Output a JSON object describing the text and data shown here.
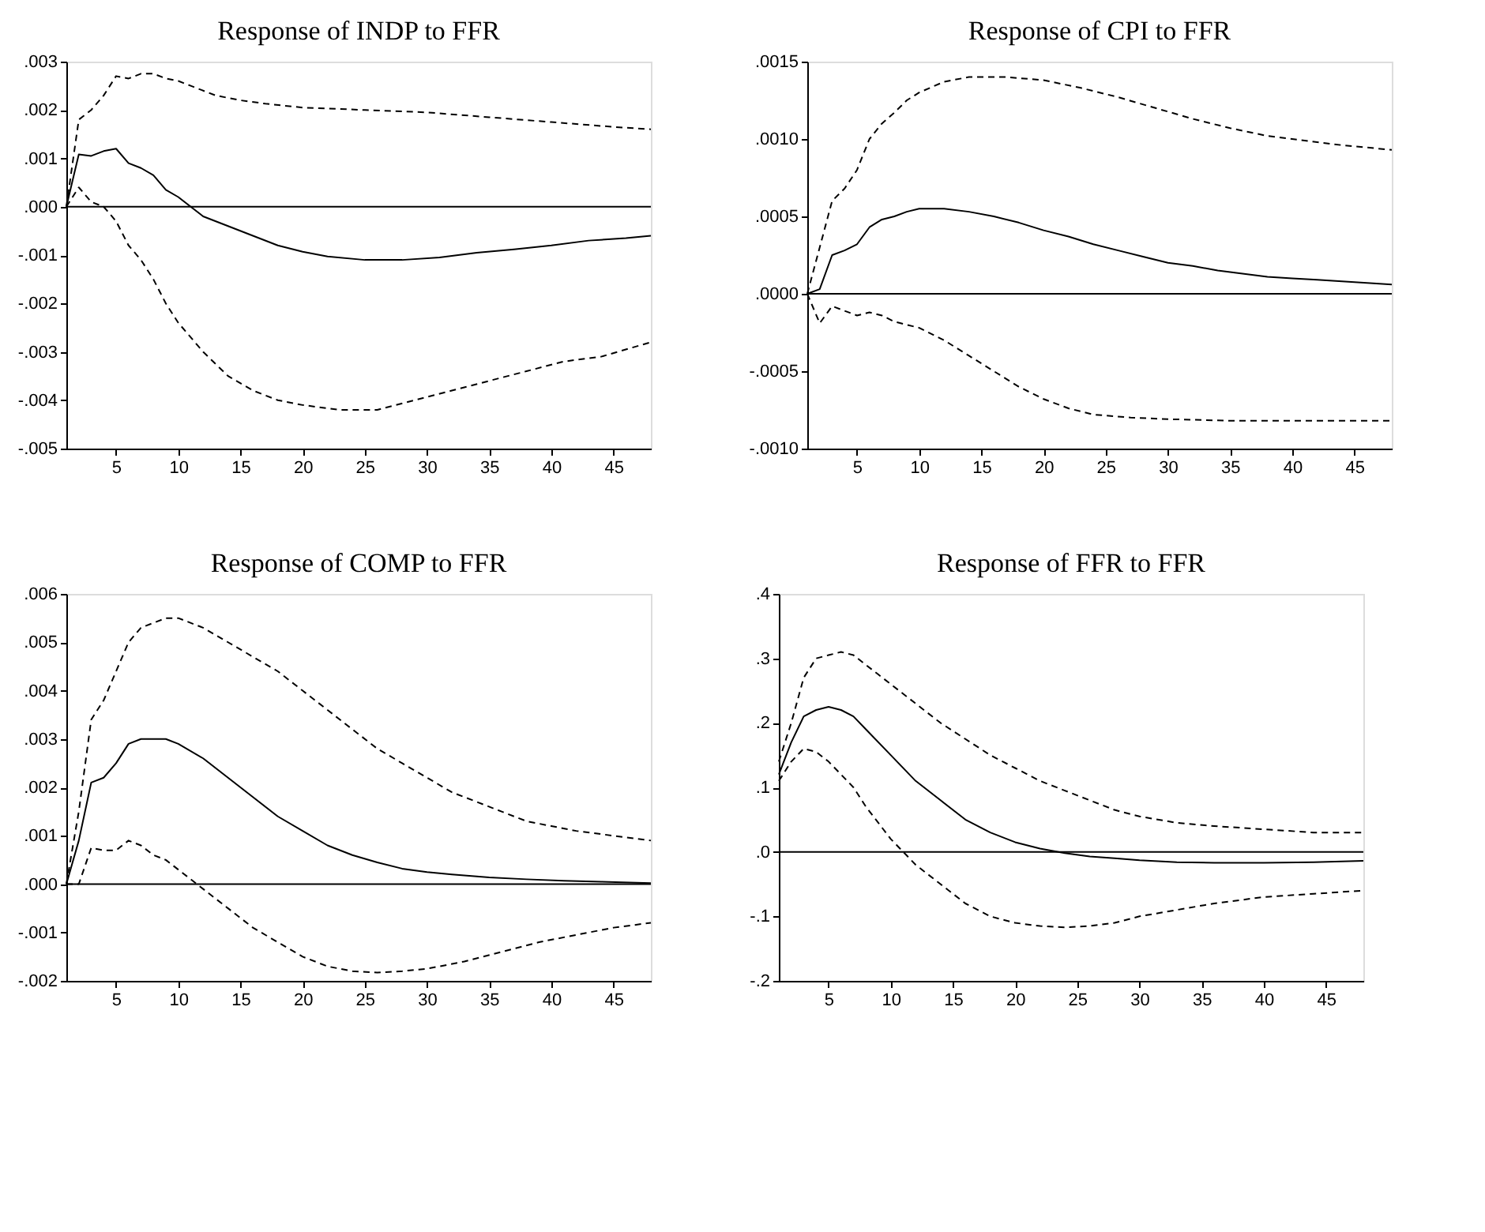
{
  "chart_data": [
    {
      "type": "line",
      "title": "Response of INDP to FFR",
      "xlim": [
        1,
        48
      ],
      "xticks": [
        5,
        10,
        15,
        20,
        25,
        30,
        35,
        40,
        45
      ],
      "ylim": [
        -0.005,
        0.003
      ],
      "yticks": [
        {
          "value": 0.003,
          "label": ".003"
        },
        {
          "value": 0.002,
          "label": ".002"
        },
        {
          "value": 0.001,
          "label": ".001"
        },
        {
          "value": 0,
          "label": ".000"
        },
        {
          "value": -0.001,
          "label": "-.001"
        },
        {
          "value": -0.002,
          "label": "-.002"
        },
        {
          "value": -0.003,
          "label": "-.003"
        },
        {
          "value": -0.004,
          "label": "-.004"
        },
        {
          "value": -0.005,
          "label": "-.005"
        }
      ],
      "grid": false,
      "ref_lines": [
        {
          "axis": "y",
          "value": 0,
          "color": "#000000",
          "line_style": "solid"
        }
      ],
      "series": [
        {
          "color": "#000000",
          "line_style": "solid",
          "x": [
            1,
            2,
            3,
            4,
            5,
            6,
            7,
            8,
            9,
            10,
            11,
            12,
            14,
            16,
            18,
            20,
            22,
            25,
            28,
            31,
            34,
            37,
            40,
            43,
            46,
            48
          ],
          "values": [
            0,
            0.00108,
            0.00105,
            0.00115,
            0.0012,
            0.0009,
            0.0008,
            0.00065,
            0.00035,
            0.0002,
            0,
            -0.0002,
            -0.0004,
            -0.0006,
            -0.0008,
            -0.00093,
            -0.00103,
            -0.0011,
            -0.0011,
            -0.00105,
            -0.00095,
            -0.00088,
            -0.0008,
            -0.0007,
            -0.00065,
            -0.0006
          ]
        },
        {
          "color": "#000000",
          "line_style": "dashed",
          "x": [
            1,
            2,
            3,
            4,
            5,
            6,
            7,
            8,
            9,
            10,
            11,
            13,
            15,
            17,
            20,
            25,
            30,
            35,
            40,
            45,
            48
          ],
          "values": [
            0,
            0.0018,
            0.002,
            0.0023,
            0.0027,
            0.00265,
            0.00275,
            0.00275,
            0.00265,
            0.0026,
            0.0025,
            0.0023,
            0.0022,
            0.00213,
            0.00205,
            0.002,
            0.00195,
            0.00185,
            0.00175,
            0.00165,
            0.0016
          ]
        },
        {
          "color": "#000000",
          "line_style": "dashed",
          "x": [
            1,
            2,
            3,
            4,
            5,
            6,
            7,
            8,
            9,
            10,
            12,
            14,
            16,
            18,
            20,
            23,
            26,
            29,
            32,
            35,
            38,
            41,
            44,
            48
          ],
          "values": [
            0,
            0.0004,
            0.0001,
            0,
            -0.0003,
            -0.0008,
            -0.0011,
            -0.0015,
            -0.002,
            -0.0024,
            -0.003,
            -0.0035,
            -0.0038,
            -0.004,
            -0.0041,
            -0.0042,
            -0.0042,
            -0.004,
            -0.0038,
            -0.0036,
            -0.0034,
            -0.0032,
            -0.0031,
            -0.0028
          ]
        }
      ]
    },
    {
      "type": "line",
      "title": "Response of CPI to FFR",
      "xlim": [
        1,
        48
      ],
      "xticks": [
        5,
        10,
        15,
        20,
        25,
        30,
        35,
        40,
        45
      ],
      "ylim": [
        -0.001,
        0.0015
      ],
      "yticks": [
        {
          "value": 0.0015,
          "label": ".0015"
        },
        {
          "value": 0.001,
          "label": ".0010"
        },
        {
          "value": 0.0005,
          "label": ".0005"
        },
        {
          "value": 0,
          "label": ".0000"
        },
        {
          "value": -0.0005,
          "label": "-.0005"
        },
        {
          "value": -0.001,
          "label": "-.0010"
        }
      ],
      "grid": false,
      "ref_lines": [
        {
          "axis": "y",
          "value": 0,
          "color": "#000000",
          "line_style": "solid"
        }
      ],
      "series": [
        {
          "color": "#000000",
          "line_style": "solid",
          "x": [
            1,
            2,
            3,
            4,
            5,
            6,
            7,
            8,
            9,
            10,
            12,
            14,
            16,
            18,
            20,
            22,
            24,
            26,
            28,
            30,
            32,
            34,
            36,
            38,
            40,
            42,
            44,
            46,
            48
          ],
          "values": [
            0,
            3e-05,
            0.00025,
            0.00028,
            0.00032,
            0.00043,
            0.00048,
            0.0005,
            0.00053,
            0.00055,
            0.00055,
            0.00053,
            0.0005,
            0.00046,
            0.00041,
            0.00037,
            0.00032,
            0.00028,
            0.00024,
            0.0002,
            0.00018,
            0.00015,
            0.00013,
            0.00011,
            0.0001,
            9e-05,
            8e-05,
            7e-05,
            6e-05
          ]
        },
        {
          "color": "#000000",
          "line_style": "dashed",
          "x": [
            1,
            2,
            3,
            4,
            5,
            6,
            7,
            8,
            9,
            10,
            12,
            14,
            17,
            20,
            23,
            26,
            29,
            32,
            35,
            38,
            41,
            44,
            48
          ],
          "values": [
            0,
            0.0003,
            0.0006,
            0.00068,
            0.0008,
            0.001,
            0.0011,
            0.00117,
            0.00125,
            0.0013,
            0.00137,
            0.0014,
            0.0014,
            0.00138,
            0.00133,
            0.00127,
            0.0012,
            0.00113,
            0.00107,
            0.00102,
            0.00099,
            0.00096,
            0.00093
          ]
        },
        {
          "color": "#000000",
          "line_style": "dashed",
          "x": [
            1,
            2,
            3,
            4,
            5,
            6,
            7,
            8,
            9,
            10,
            12,
            14,
            16,
            18,
            20,
            22,
            24,
            27,
            30,
            35,
            40,
            48
          ],
          "values": [
            0,
            -0.00019,
            -8e-05,
            -0.00011,
            -0.00014,
            -0.00012,
            -0.00014,
            -0.00018,
            -0.0002,
            -0.00022,
            -0.0003,
            -0.0004,
            -0.0005,
            -0.0006,
            -0.00068,
            -0.00074,
            -0.00078,
            -0.0008,
            -0.00081,
            -0.00082,
            -0.00082,
            -0.00082
          ]
        }
      ]
    },
    {
      "type": "line",
      "title": "Response of COMP to FFR",
      "xlim": [
        1,
        48
      ],
      "xticks": [
        5,
        10,
        15,
        20,
        25,
        30,
        35,
        40,
        45
      ],
      "ylim": [
        -0.002,
        0.006
      ],
      "yticks": [
        {
          "value": 0.006,
          "label": ".006"
        },
        {
          "value": 0.005,
          "label": ".005"
        },
        {
          "value": 0.004,
          "label": ".004"
        },
        {
          "value": 0.003,
          "label": ".003"
        },
        {
          "value": 0.002,
          "label": ".002"
        },
        {
          "value": 0.001,
          "label": ".001"
        },
        {
          "value": 0,
          "label": ".000"
        },
        {
          "value": -0.001,
          "label": "-.001"
        },
        {
          "value": -0.002,
          "label": "-.002"
        }
      ],
      "grid": false,
      "ref_lines": [
        {
          "axis": "y",
          "value": 0,
          "color": "#000000",
          "line_style": "solid"
        }
      ],
      "series": [
        {
          "color": "#000000",
          "line_style": "solid",
          "x": [
            1,
            2,
            3,
            4,
            5,
            6,
            7,
            8,
            9,
            10,
            12,
            14,
            16,
            18,
            20,
            22,
            24,
            26,
            28,
            30,
            32,
            35,
            38,
            41,
            44,
            48
          ],
          "values": [
            0,
            0.0009,
            0.0021,
            0.0022,
            0.0025,
            0.0029,
            0.003,
            0.003,
            0.003,
            0.0029,
            0.0026,
            0.0022,
            0.0018,
            0.0014,
            0.0011,
            0.0008,
            0.0006,
            0.00045,
            0.00032,
            0.00025,
            0.0002,
            0.00014,
            0.0001,
            7e-05,
            5e-05,
            2e-05
          ]
        },
        {
          "color": "#000000",
          "line_style": "dashed",
          "x": [
            1,
            2,
            3,
            4,
            5,
            6,
            7,
            8,
            9,
            10,
            12,
            14,
            16,
            18,
            20,
            22,
            24,
            26,
            28,
            30,
            32,
            34,
            36,
            38,
            40,
            42,
            45,
            48
          ],
          "values": [
            0,
            0.0015,
            0.0034,
            0.0038,
            0.0044,
            0.005,
            0.0053,
            0.0054,
            0.0055,
            0.0055,
            0.0053,
            0.005,
            0.0047,
            0.0044,
            0.004,
            0.0036,
            0.0032,
            0.0028,
            0.0025,
            0.0022,
            0.0019,
            0.0017,
            0.0015,
            0.0013,
            0.0012,
            0.0011,
            0.001,
            0.0009
          ]
        },
        {
          "color": "#000000",
          "line_style": "dashed",
          "x": [
            1,
            2,
            3,
            4,
            5,
            6,
            7,
            8,
            9,
            10,
            11,
            12,
            14,
            16,
            18,
            20,
            22,
            24,
            26,
            28,
            30,
            33,
            36,
            39,
            42,
            45,
            48
          ],
          "values": [
            0,
            0,
            0.00075,
            0.0007,
            0.0007,
            0.0009,
            0.0008,
            0.0006,
            0.0005,
            0.0003,
            0.0001,
            -0.0001,
            -0.0005,
            -0.0009,
            -0.0012,
            -0.0015,
            -0.0017,
            -0.0018,
            -0.00183,
            -0.0018,
            -0.00175,
            -0.0016,
            -0.0014,
            -0.0012,
            -0.00105,
            -0.0009,
            -0.0008
          ]
        }
      ]
    },
    {
      "type": "line",
      "title": "Response of FFR to FFR",
      "xlim": [
        1,
        48
      ],
      "xticks": [
        5,
        10,
        15,
        20,
        25,
        30,
        35,
        40,
        45
      ],
      "ylim": [
        -0.2,
        0.4
      ],
      "yticks": [
        {
          "value": 0.4,
          "label": ".4"
        },
        {
          "value": 0.3,
          "label": ".3"
        },
        {
          "value": 0.2,
          "label": ".2"
        },
        {
          "value": 0.1,
          "label": ".1"
        },
        {
          "value": 0,
          "label": ".0"
        },
        {
          "value": -0.1,
          "label": "-.1"
        },
        {
          "value": -0.2,
          "label": "-.2"
        }
      ],
      "grid": false,
      "ref_lines": [
        {
          "axis": "y",
          "value": 0,
          "color": "#000000",
          "line_style": "solid"
        }
      ],
      "series": [
        {
          "color": "#000000",
          "line_style": "solid",
          "x": [
            1,
            2,
            3,
            4,
            5,
            6,
            7,
            8,
            10,
            12,
            14,
            16,
            18,
            20,
            22,
            24,
            26,
            28,
            30,
            33,
            36,
            40,
            44,
            48
          ],
          "values": [
            0.12,
            0.17,
            0.21,
            0.22,
            0.225,
            0.22,
            0.21,
            0.19,
            0.15,
            0.11,
            0.08,
            0.05,
            0.03,
            0.015,
            0.005,
            -0.002,
            -0.007,
            -0.01,
            -0.013,
            -0.016,
            -0.017,
            -0.017,
            -0.016,
            -0.014
          ]
        },
        {
          "color": "#000000",
          "line_style": "dashed",
          "x": [
            1,
            2,
            3,
            4,
            5,
            6,
            7,
            8,
            9,
            10,
            12,
            14,
            16,
            18,
            20,
            22,
            24,
            26,
            28,
            30,
            33,
            36,
            40,
            44,
            48
          ],
          "values": [
            0.14,
            0.2,
            0.27,
            0.3,
            0.305,
            0.31,
            0.305,
            0.29,
            0.275,
            0.26,
            0.23,
            0.2,
            0.175,
            0.15,
            0.13,
            0.11,
            0.095,
            0.08,
            0.065,
            0.055,
            0.045,
            0.04,
            0.035,
            0.03,
            0.03
          ]
        },
        {
          "color": "#000000",
          "line_style": "dashed",
          "x": [
            1,
            2,
            3,
            4,
            5,
            6,
            7,
            8,
            9,
            10,
            12,
            14,
            16,
            18,
            20,
            22,
            24,
            26,
            28,
            30,
            33,
            36,
            40,
            44,
            48
          ],
          "values": [
            0.11,
            0.14,
            0.16,
            0.155,
            0.14,
            0.12,
            0.1,
            0.07,
            0.045,
            0.02,
            -0.02,
            -0.05,
            -0.08,
            -0.1,
            -0.11,
            -0.115,
            -0.117,
            -0.115,
            -0.11,
            -0.1,
            -0.09,
            -0.08,
            -0.07,
            -0.065,
            -0.06
          ]
        }
      ]
    }
  ]
}
